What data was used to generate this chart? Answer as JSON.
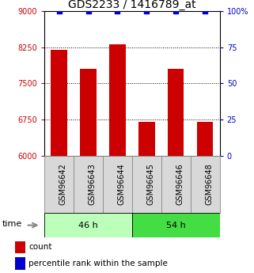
{
  "title": "GDS2233 / 1416789_at",
  "categories": [
    "GSM96642",
    "GSM96643",
    "GSM96644",
    "GSM96645",
    "GSM96646",
    "GSM96648"
  ],
  "bar_values": [
    8200,
    7800,
    8310,
    6700,
    7800,
    6700
  ],
  "percentile_values": [
    100,
    100,
    100,
    100,
    100,
    100
  ],
  "bar_color": "#cc0000",
  "percentile_color": "#0000cc",
  "ylim_left": [
    6000,
    9000
  ],
  "ylim_right": [
    0,
    100
  ],
  "yticks_left": [
    6000,
    6750,
    7500,
    8250,
    9000
  ],
  "yticks_right": [
    0,
    25,
    50,
    75,
    100
  ],
  "ytick_labels_right": [
    "0",
    "25",
    "50",
    "75",
    "100%"
  ],
  "groups": [
    {
      "label": "46 h",
      "indices": [
        0,
        1,
        2
      ],
      "color": "#bbffbb"
    },
    {
      "label": "54 h",
      "indices": [
        3,
        4,
        5
      ],
      "color": "#44dd44"
    }
  ],
  "bar_width": 0.55,
  "time_label": "time",
  "legend_count_label": "count",
  "legend_percentile_label": "percentile rank within the sample",
  "title_fontsize": 10,
  "tick_label_fontsize": 7,
  "cat_fontsize": 7,
  "background_color": "#ffffff",
  "plot_bg_color": "#ffffff",
  "grid_color": "#000000",
  "sample_box_color": "#d8d8d8",
  "sample_box_edge": "#888888"
}
